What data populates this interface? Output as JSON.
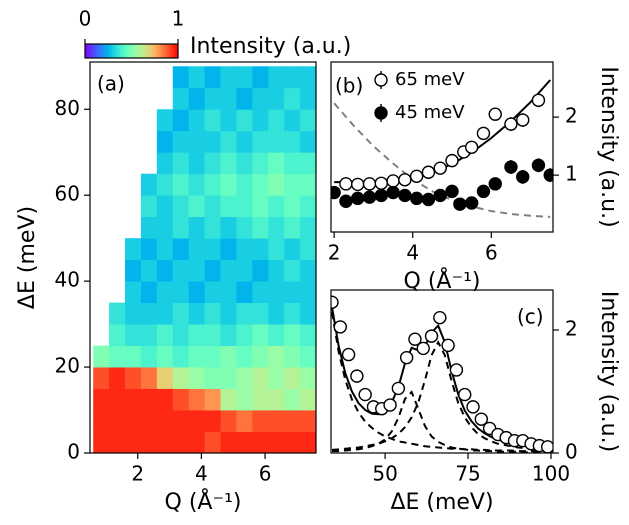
{
  "chart_data": [
    {
      "type": "heatmap",
      "label": "(a)",
      "xlabel": "Q (Å⁻¹)",
      "ylabel": "ΔE (meV)",
      "yaxis_side": "left",
      "cmap": "rainbow",
      "xlim": [
        0.5,
        7.6
      ],
      "ylim": [
        0,
        91
      ],
      "xticks": [
        2,
        4,
        6
      ],
      "yticks": [
        0,
        20,
        40,
        60,
        80
      ],
      "x_edges": [
        0.6,
        1.1,
        1.6,
        2.1,
        2.6,
        3.1,
        3.6,
        4.1,
        4.6,
        5.1,
        5.6,
        6.1,
        6.6,
        7.1,
        7.6
      ],
      "y_edges": [
        0,
        5,
        10,
        15,
        20,
        25,
        30,
        35,
        40,
        45,
        50,
        55,
        60,
        65,
        70,
        75,
        80,
        85,
        90
      ],
      "z": [
        [
          0.95,
          0.95,
          0.95,
          0.95,
          0.95,
          0.95,
          0.95,
          0.9,
          0.95,
          0.95,
          0.95,
          0.95,
          0.95,
          0.95
        ],
        [
          0.95,
          0.95,
          0.95,
          0.95,
          0.95,
          0.95,
          0.95,
          0.95,
          0.9,
          0.85,
          0.9,
          0.9,
          0.9,
          0.9
        ],
        [
          0.95,
          0.95,
          0.95,
          0.95,
          0.95,
          0.9,
          0.85,
          0.8,
          0.6,
          0.55,
          0.6,
          0.6,
          0.55,
          0.6
        ],
        [
          0.9,
          0.95,
          0.9,
          0.85,
          0.7,
          0.6,
          0.55,
          0.5,
          0.5,
          0.55,
          0.6,
          0.55,
          0.6,
          0.55
        ],
        [
          0.5,
          0.45,
          0.45,
          0.4,
          0.45,
          0.4,
          0.45,
          0.45,
          0.5,
          0.45,
          0.5,
          0.55,
          0.5,
          0.45
        ],
        [
          null,
          0.4,
          0.35,
          0.35,
          0.4,
          0.35,
          0.4,
          0.4,
          0.35,
          0.4,
          0.45,
          0.4,
          0.45,
          0.4
        ],
        [
          null,
          0.35,
          0.3,
          0.3,
          0.3,
          0.35,
          0.3,
          0.35,
          0.3,
          0.35,
          0.35,
          0.3,
          0.35,
          0.3
        ],
        [
          null,
          null,
          0.3,
          0.25,
          0.3,
          0.3,
          0.25,
          0.3,
          0.3,
          0.25,
          0.3,
          0.3,
          0.3,
          0.3
        ],
        [
          null,
          null,
          0.25,
          0.3,
          0.25,
          0.3,
          0.3,
          0.25,
          0.3,
          0.3,
          0.25,
          0.3,
          0.35,
          0.3
        ],
        [
          null,
          null,
          0.3,
          0.25,
          0.3,
          0.25,
          0.3,
          0.3,
          0.25,
          0.3,
          0.3,
          0.35,
          0.3,
          0.35
        ],
        [
          null,
          null,
          null,
          0.3,
          0.3,
          0.35,
          0.3,
          0.35,
          0.3,
          0.35,
          0.4,
          0.35,
          0.4,
          0.35
        ],
        [
          null,
          null,
          null,
          0.35,
          0.3,
          0.35,
          0.4,
          0.35,
          0.4,
          0.4,
          0.45,
          0.4,
          0.45,
          0.4
        ],
        [
          null,
          null,
          null,
          0.3,
          0.35,
          0.4,
          0.35,
          0.4,
          0.45,
          0.4,
          0.45,
          0.5,
          0.45,
          0.45
        ],
        [
          null,
          null,
          null,
          null,
          0.3,
          0.35,
          0.3,
          0.35,
          0.4,
          0.35,
          0.4,
          0.45,
          0.4,
          0.4
        ],
        [
          null,
          null,
          null,
          null,
          0.25,
          0.3,
          0.3,
          0.3,
          0.35,
          0.3,
          0.35,
          0.35,
          0.35,
          0.3
        ],
        [
          null,
          null,
          null,
          null,
          0.3,
          0.25,
          0.3,
          0.35,
          0.3,
          0.35,
          0.3,
          0.35,
          0.3,
          0.35
        ],
        [
          null,
          null,
          null,
          null,
          null,
          0.3,
          0.25,
          0.3,
          0.3,
          0.25,
          0.3,
          0.3,
          0.35,
          0.3
        ],
        [
          null,
          null,
          null,
          null,
          null,
          0.25,
          0.3,
          0.25,
          0.3,
          0.3,
          0.25,
          0.3,
          0.3,
          0.3
        ]
      ],
      "colorbar": {
        "label": "Intensity (a.u.)",
        "lim": [
          0,
          1
        ],
        "ticks": [
          0,
          1
        ]
      }
    },
    {
      "type": "scatter",
      "label": "(b)",
      "xlabel": "Q (Å⁻¹)",
      "ylabel": "Intensity (a.u.)",
      "yaxis_side": "right",
      "legend": "upper left",
      "xlim": [
        1.92,
        7.57
      ],
      "ylim": [
        0.02,
        2.95
      ],
      "xticks": [
        2,
        4,
        6
      ],
      "yticks": [
        1,
        2
      ],
      "series": [
        {
          "name": "65 meV",
          "marker": "open",
          "color": "#000000",
          "x": [
            2.3,
            2.6,
            2.9,
            3.2,
            3.5,
            3.8,
            4.1,
            4.4,
            4.7,
            5.0,
            5.3,
            5.5,
            5.8,
            6.1,
            6.5,
            6.8,
            7.2
          ],
          "values": [
            0.85,
            0.84,
            0.85,
            0.86,
            0.9,
            0.92,
            0.98,
            1.05,
            1.12,
            1.25,
            1.4,
            1.48,
            1.72,
            2.05,
            1.88,
            1.95,
            2.29
          ],
          "errors": [
            0.08,
            0.08,
            0.08,
            0.08,
            0.08,
            0.08,
            0.08,
            0.08,
            0.08,
            0.08,
            0.08,
            0.08,
            0.1,
            0.1,
            0.12,
            0.12,
            0.12
          ]
        },
        {
          "name": "45 meV",
          "marker": "filled",
          "color": "#000000",
          "x": [
            2.0,
            2.3,
            2.6,
            2.9,
            3.2,
            3.5,
            3.8,
            4.1,
            4.4,
            4.7,
            5.0,
            5.2,
            5.5,
            5.8,
            6.1,
            6.5,
            6.8,
            7.2,
            7.5
          ],
          "values": [
            0.7,
            0.55,
            0.6,
            0.62,
            0.65,
            0.7,
            0.65,
            0.6,
            0.58,
            0.65,
            0.72,
            0.5,
            0.52,
            0.72,
            0.85,
            1.14,
            0.97,
            1.17,
            1.0
          ],
          "errors": [
            0.07,
            0.07,
            0.07,
            0.07,
            0.07,
            0.07,
            0.07,
            0.07,
            0.07,
            0.07,
            0.07,
            0.07,
            0.07,
            0.08,
            0.1,
            0.12,
            0.12,
            0.12,
            0.12
          ]
        }
      ],
      "lines": [
        {
          "style": "solid",
          "color": "#000000",
          "x": [
            2,
            2.5,
            3,
            3.5,
            4,
            4.5,
            5,
            5.5,
            6,
            6.5,
            7,
            7.5
          ],
          "values": [
            0.88,
            0.88,
            0.89,
            0.91,
            0.96,
            1.05,
            1.19,
            1.39,
            1.64,
            1.93,
            2.26,
            2.64
          ]
        },
        {
          "style": "dashed",
          "color": "#808080",
          "x": [
            2,
            2.5,
            3,
            3.5,
            4,
            4.5,
            5,
            5.5,
            6,
            6.5,
            7,
            7.5
          ],
          "values": [
            2.24,
            1.85,
            1.5,
            1.2,
            0.93,
            0.72,
            0.57,
            0.46,
            0.38,
            0.33,
            0.3,
            0.28
          ]
        }
      ]
    },
    {
      "type": "scatter",
      "label": "(c)",
      "xlabel": "ΔE (meV)",
      "ylabel": "Intensity (a.u.)",
      "yaxis_side": "right",
      "xlim": [
        33.7,
        100.6
      ],
      "ylim": [
        0,
        2.65
      ],
      "xticks": [
        50,
        75,
        100
      ],
      "yticks": [
        0,
        2
      ],
      "points": {
        "marker": "open",
        "color": "#000000",
        "x": [
          34,
          36.5,
          39,
          41.5,
          44,
          46.5,
          49,
          51.5,
          54,
          56.5,
          59,
          61.5,
          64,
          66.5,
          69,
          71.5,
          74,
          76.5,
          79,
          81.5,
          84,
          86.5,
          89,
          91.5,
          94,
          96.5,
          99
        ],
        "values": [
          2.45,
          2.05,
          1.6,
          1.25,
          0.95,
          0.75,
          0.72,
          0.78,
          1.05,
          1.55,
          1.85,
          1.7,
          1.9,
          2.2,
          1.75,
          1.35,
          0.95,
          0.75,
          0.55,
          0.4,
          0.3,
          0.25,
          0.2,
          0.2,
          0.15,
          0.12,
          0.1
        ],
        "errors": [
          0.08,
          0.08,
          0.08,
          0.08,
          0.08,
          0.08,
          0.08,
          0.08,
          0.08,
          0.08,
          0.08,
          0.08,
          0.08,
          0.08,
          0.08,
          0.08,
          0.08,
          0.08,
          0.08,
          0.08,
          0.08,
          0.08,
          0.08,
          0.08,
          0.08,
          0.08,
          0.08
        ]
      },
      "lines": [
        {
          "style": "solid",
          "color": "#000000",
          "x": [
            34,
            36,
            38,
            40,
            42,
            44,
            46,
            48,
            50,
            52,
            54,
            56,
            58,
            60,
            62,
            64,
            66,
            68,
            70,
            72,
            74,
            76,
            78,
            80,
            82,
            84,
            86,
            88,
            90,
            92,
            94,
            96,
            98,
            100
          ],
          "values": [
            2.37,
            1.74,
            1.3,
            1.0,
            0.81,
            0.7,
            0.64,
            0.63,
            0.68,
            0.82,
            1.07,
            1.46,
            1.71,
            1.67,
            1.73,
            1.96,
            2.07,
            1.8,
            1.34,
            0.96,
            0.69,
            0.52,
            0.4,
            0.32,
            0.26,
            0.22,
            0.18,
            0.16,
            0.14,
            0.12,
            0.11,
            0.1,
            0.09,
            0.08
          ]
        },
        {
          "style": "dashed",
          "color": "#000000",
          "x": [
            34,
            36,
            38,
            40,
            42,
            44,
            46,
            48,
            50,
            52,
            54,
            56,
            58,
            60,
            62,
            64,
            66,
            68,
            70,
            72,
            74,
            76,
            78,
            80,
            82,
            84,
            86,
            88,
            90,
            92,
            94,
            96,
            98,
            100
          ],
          "values": [
            2.29,
            1.65,
            1.19,
            0.87,
            0.66,
            0.51,
            0.41,
            0.33,
            0.27,
            0.23,
            0.19,
            0.17,
            0.15,
            0.13,
            0.11,
            0.1,
            0.09,
            0.08,
            0.07,
            0.07,
            0.06,
            0.06,
            0.05,
            0.05,
            0.04,
            0.04,
            0.04,
            0.04,
            0.03,
            0.03,
            0.03,
            0.03,
            0.03,
            0.02
          ]
        },
        {
          "style": "dashed",
          "color": "#000000",
          "x": [
            34,
            36,
            38,
            40,
            42,
            44,
            46,
            48,
            50,
            52,
            54,
            56,
            58,
            60,
            62,
            64,
            66,
            68,
            70,
            72,
            74,
            76,
            78,
            80,
            82,
            84,
            86,
            88,
            90,
            92,
            94,
            96,
            98,
            100
          ],
          "values": [
            0.03,
            0.03,
            0.04,
            0.05,
            0.06,
            0.08,
            0.11,
            0.15,
            0.22,
            0.35,
            0.57,
            0.88,
            0.99,
            0.72,
            0.44,
            0.27,
            0.18,
            0.13,
            0.09,
            0.07,
            0.06,
            0.04,
            0.04,
            0.03,
            0.03,
            0.02,
            0.02,
            0.02,
            0.02,
            0.01,
            0.01,
            0.01,
            0.01,
            0.01
          ]
        },
        {
          "style": "dashed",
          "color": "#000000",
          "x": [
            34,
            36,
            38,
            40,
            42,
            44,
            46,
            48,
            50,
            52,
            54,
            56,
            58,
            60,
            62,
            64,
            66,
            68,
            70,
            72,
            74,
            76,
            78,
            80,
            82,
            84,
            86,
            88,
            90,
            92,
            94,
            96,
            98,
            100
          ],
          "values": [
            0.05,
            0.06,
            0.07,
            0.08,
            0.09,
            0.11,
            0.13,
            0.15,
            0.19,
            0.24,
            0.31,
            0.42,
            0.58,
            0.82,
            1.18,
            1.59,
            1.8,
            1.59,
            1.18,
            0.82,
            0.58,
            0.42,
            0.31,
            0.24,
            0.19,
            0.15,
            0.13,
            0.11,
            0.09,
            0.08,
            0.07,
            0.06,
            0.05,
            0.05
          ]
        }
      ]
    }
  ]
}
